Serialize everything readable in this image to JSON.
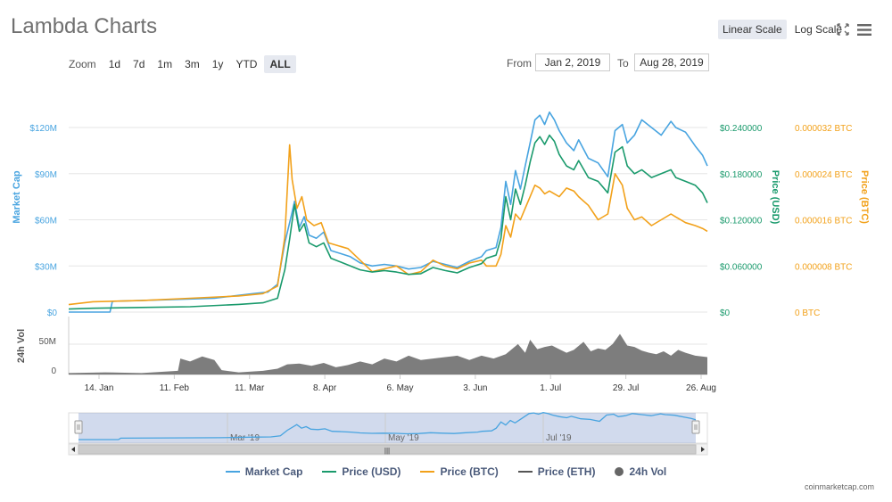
{
  "title": "Lambda Charts",
  "scale": {
    "linear_label": "Linear Scale",
    "log_label": "Log Scale",
    "selected": "linear"
  },
  "zoom": {
    "label": "Zoom",
    "options": [
      "1d",
      "7d",
      "1m",
      "3m",
      "1y",
      "YTD",
      "ALL"
    ],
    "selected": "ALL"
  },
  "range": {
    "from_label": "From",
    "from_value": "Jan 2, 2019",
    "to_label": "To",
    "to_value": "Aug 28, 2019"
  },
  "credit": "coinmarketcap.com",
  "colors": {
    "market_cap": "#48a4e0",
    "price_usd": "#1a9a6c",
    "price_btc": "#f2a11a",
    "price_eth": "#555555",
    "vol": "#666666"
  },
  "chart_data": {
    "type": "line",
    "x_ticks": [
      "14. Jan",
      "11. Feb",
      "11. Mar",
      "8. Apr",
      "6. May",
      "3. Jun",
      "1. Jul",
      "29. Jul",
      "26. Aug"
    ],
    "x_range": [
      "2019-01-02",
      "2019-08-28"
    ],
    "axes": {
      "market_cap": {
        "title": "Market Cap",
        "ticks": [
          "$0",
          "$30M",
          "$60M",
          "$90M",
          "$120M"
        ],
        "range": [
          0,
          120000000
        ]
      },
      "price_usd": {
        "title": "Price (USD)",
        "ticks": [
          "$0",
          "$0.060000",
          "$0.120000",
          "$0.180000",
          "$0.240000"
        ],
        "range": [
          0,
          0.24
        ]
      },
      "price_btc": {
        "title": "Price (BTC)",
        "ticks": [
          "0 BTC",
          "0.000008 BTC",
          "0.000016 BTC",
          "0.000024 BTC",
          "0.000032 BTC"
        ],
        "range": [
          0,
          3.2e-05
        ]
      },
      "vol": {
        "title": "24h Vol",
        "ticks": [
          "0",
          "50M"
        ],
        "range": [
          0,
          80000000
        ]
      }
    },
    "navigator_labels": [
      "Mar '19",
      "May '19",
      "Jul '19"
    ],
    "series": [
      {
        "name": "Market Cap",
        "key": "market_cap",
        "axis": "market_cap",
        "points": [
          [
            0,
            0
          ],
          [
            17,
            0
          ],
          [
            18,
            7000000
          ],
          [
            40,
            8000000
          ],
          [
            60,
            9000000
          ],
          [
            76,
            12000000
          ],
          [
            82,
            13000000
          ],
          [
            86,
            18000000
          ],
          [
            89,
            45000000
          ],
          [
            92,
            65000000
          ],
          [
            93,
            72000000
          ],
          [
            95,
            55000000
          ],
          [
            97,
            62000000
          ],
          [
            99,
            50000000
          ],
          [
            102,
            48000000
          ],
          [
            105,
            52000000
          ],
          [
            108,
            40000000
          ],
          [
            112,
            38000000
          ],
          [
            116,
            36000000
          ],
          [
            120,
            32000000
          ],
          [
            125,
            30000000
          ],
          [
            130,
            31000000
          ],
          [
            135,
            30000000
          ],
          [
            140,
            28000000
          ],
          [
            145,
            29000000
          ],
          [
            150,
            33000000
          ],
          [
            155,
            31000000
          ],
          [
            160,
            29000000
          ],
          [
            165,
            33000000
          ],
          [
            170,
            36000000
          ],
          [
            172,
            40000000
          ],
          [
            176,
            42000000
          ],
          [
            178,
            55000000
          ],
          [
            180,
            85000000
          ],
          [
            182,
            70000000
          ],
          [
            184,
            92000000
          ],
          [
            186,
            80000000
          ],
          [
            188,
            95000000
          ],
          [
            190,
            110000000
          ],
          [
            192,
            125000000
          ],
          [
            194,
            128000000
          ],
          [
            196,
            122000000
          ],
          [
            198,
            130000000
          ],
          [
            200,
            125000000
          ],
          [
            202,
            118000000
          ],
          [
            205,
            110000000
          ],
          [
            208,
            105000000
          ],
          [
            210,
            112000000
          ],
          [
            214,
            100000000
          ],
          [
            218,
            97000000
          ],
          [
            222,
            88000000
          ],
          [
            225,
            118000000
          ],
          [
            228,
            122000000
          ],
          [
            230,
            110000000
          ],
          [
            233,
            115000000
          ],
          [
            236,
            125000000
          ],
          [
            240,
            120000000
          ],
          [
            244,
            115000000
          ],
          [
            248,
            124000000
          ],
          [
            250,
            120000000
          ],
          [
            254,
            117000000
          ],
          [
            258,
            108000000
          ],
          [
            261,
            102000000
          ],
          [
            263,
            95000000
          ]
        ]
      },
      {
        "name": "Price (USD)",
        "key": "price_usd",
        "axis": "price_usd",
        "points": [
          [
            0,
            0.004
          ],
          [
            10,
            0.005
          ],
          [
            30,
            0.006
          ],
          [
            50,
            0.007
          ],
          [
            70,
            0.01
          ],
          [
            80,
            0.012
          ],
          [
            86,
            0.018
          ],
          [
            89,
            0.055
          ],
          [
            91,
            0.095
          ],
          [
            93,
            0.14
          ],
          [
            95,
            0.105
          ],
          [
            97,
            0.115
          ],
          [
            99,
            0.09
          ],
          [
            102,
            0.085
          ],
          [
            105,
            0.09
          ],
          [
            108,
            0.07
          ],
          [
            112,
            0.065
          ],
          [
            116,
            0.06
          ],
          [
            120,
            0.055
          ],
          [
            125,
            0.052
          ],
          [
            130,
            0.054
          ],
          [
            135,
            0.052
          ],
          [
            140,
            0.049
          ],
          [
            145,
            0.05
          ],
          [
            150,
            0.058
          ],
          [
            155,
            0.054
          ],
          [
            160,
            0.051
          ],
          [
            165,
            0.058
          ],
          [
            170,
            0.063
          ],
          [
            172,
            0.07
          ],
          [
            176,
            0.074
          ],
          [
            178,
            0.096
          ],
          [
            180,
            0.15
          ],
          [
            182,
            0.12
          ],
          [
            184,
            0.16
          ],
          [
            186,
            0.14
          ],
          [
            188,
            0.165
          ],
          [
            190,
            0.195
          ],
          [
            192,
            0.22
          ],
          [
            194,
            0.228
          ],
          [
            196,
            0.218
          ],
          [
            198,
            0.23
          ],
          [
            200,
            0.222
          ],
          [
            202,
            0.205
          ],
          [
            205,
            0.19
          ],
          [
            208,
            0.185
          ],
          [
            210,
            0.197
          ],
          [
            214,
            0.175
          ],
          [
            218,
            0.17
          ],
          [
            222,
            0.155
          ],
          [
            225,
            0.208
          ],
          [
            228,
            0.215
          ],
          [
            230,
            0.19
          ],
          [
            233,
            0.18
          ],
          [
            236,
            0.185
          ],
          [
            240,
            0.175
          ],
          [
            244,
            0.18
          ],
          [
            248,
            0.185
          ],
          [
            250,
            0.175
          ],
          [
            254,
            0.17
          ],
          [
            258,
            0.165
          ],
          [
            261,
            0.155
          ],
          [
            263,
            0.142
          ]
        ]
      },
      {
        "name": "Price (BTC)",
        "key": "price_btc",
        "axis": "price_btc",
        "points": [
          [
            0,
            1.3e-06
          ],
          [
            10,
            1.8e-06
          ],
          [
            30,
            2e-06
          ],
          [
            50,
            2.4e-06
          ],
          [
            70,
            2.8e-06
          ],
          [
            80,
            3.2e-06
          ],
          [
            86,
            4.5e-06
          ],
          [
            89,
            1.3e-05
          ],
          [
            91,
            2.9e-05
          ],
          [
            92,
            2.3e-05
          ],
          [
            94,
            1.8e-05
          ],
          [
            96,
            2e-05
          ],
          [
            98,
            1.6e-05
          ],
          [
            101,
            1.5e-05
          ],
          [
            104,
            1.55e-05
          ],
          [
            107,
            1.2e-05
          ],
          [
            111,
            1.15e-05
          ],
          [
            115,
            1.1e-05
          ],
          [
            120,
            9e-06
          ],
          [
            125,
            7e-06
          ],
          [
            130,
            7.5e-06
          ],
          [
            135,
            8e-06
          ],
          [
            140,
            6.5e-06
          ],
          [
            145,
            7e-06
          ],
          [
            150,
            9e-06
          ],
          [
            155,
            8e-06
          ],
          [
            160,
            7.5e-06
          ],
          [
            165,
            8.5e-06
          ],
          [
            170,
            9e-06
          ],
          [
            172,
            8e-06
          ],
          [
            176,
            8e-06
          ],
          [
            178,
            1e-05
          ],
          [
            180,
            1.5e-05
          ],
          [
            182,
            1.3e-05
          ],
          [
            184,
            1.7e-05
          ],
          [
            186,
            1.6e-05
          ],
          [
            188,
            1.8e-05
          ],
          [
            190,
            2e-05
          ],
          [
            192,
            2.2e-05
          ],
          [
            194,
            2.15e-05
          ],
          [
            196,
            2.05e-05
          ],
          [
            198,
            2.1e-05
          ],
          [
            202,
            2e-05
          ],
          [
            205,
            2.15e-05
          ],
          [
            208,
            2.1e-05
          ],
          [
            210,
            2e-05
          ],
          [
            214,
            1.85e-05
          ],
          [
            218,
            1.6e-05
          ],
          [
            222,
            1.7e-05
          ],
          [
            225,
            2.4e-05
          ],
          [
            228,
            2.2e-05
          ],
          [
            230,
            1.8e-05
          ],
          [
            233,
            1.6e-05
          ],
          [
            236,
            1.65e-05
          ],
          [
            240,
            1.5e-05
          ],
          [
            244,
            1.6e-05
          ],
          [
            248,
            1.7e-05
          ],
          [
            250,
            1.65e-05
          ],
          [
            254,
            1.55e-05
          ],
          [
            258,
            1.5e-05
          ],
          [
            261,
            1.45e-05
          ],
          [
            263,
            1.4e-05
          ]
        ]
      },
      {
        "name": "24h Vol",
        "key": "vol",
        "axis": "vol",
        "points": [
          [
            0,
            2000000
          ],
          [
            15,
            3000000
          ],
          [
            30,
            2000000
          ],
          [
            45,
            5000000
          ],
          [
            46,
            22000000
          ],
          [
            50,
            18000000
          ],
          [
            55,
            25000000
          ],
          [
            60,
            20000000
          ],
          [
            63,
            6000000
          ],
          [
            70,
            3000000
          ],
          [
            80,
            5000000
          ],
          [
            86,
            8000000
          ],
          [
            90,
            14000000
          ],
          [
            95,
            15000000
          ],
          [
            100,
            12000000
          ],
          [
            105,
            16000000
          ],
          [
            110,
            10000000
          ],
          [
            115,
            13000000
          ],
          [
            120,
            18000000
          ],
          [
            125,
            14000000
          ],
          [
            130,
            22000000
          ],
          [
            135,
            18000000
          ],
          [
            140,
            26000000
          ],
          [
            145,
            20000000
          ],
          [
            150,
            22000000
          ],
          [
            155,
            24000000
          ],
          [
            160,
            26000000
          ],
          [
            165,
            20000000
          ],
          [
            170,
            26000000
          ],
          [
            175,
            22000000
          ],
          [
            180,
            28000000
          ],
          [
            185,
            42000000
          ],
          [
            188,
            30000000
          ],
          [
            190,
            48000000
          ],
          [
            193,
            35000000
          ],
          [
            196,
            38000000
          ],
          [
            199,
            40000000
          ],
          [
            202,
            35000000
          ],
          [
            205,
            30000000
          ],
          [
            208,
            34000000
          ],
          [
            212,
            45000000
          ],
          [
            215,
            32000000
          ],
          [
            218,
            36000000
          ],
          [
            221,
            34000000
          ],
          [
            224,
            42000000
          ],
          [
            227,
            56000000
          ],
          [
            230,
            40000000
          ],
          [
            233,
            38000000
          ],
          [
            236,
            33000000
          ],
          [
            239,
            30000000
          ],
          [
            242,
            28000000
          ],
          [
            245,
            32000000
          ],
          [
            248,
            26000000
          ],
          [
            251,
            34000000
          ],
          [
            254,
            30000000
          ],
          [
            258,
            26000000
          ],
          [
            263,
            24000000
          ]
        ]
      }
    ],
    "legend": [
      {
        "name": "Market Cap",
        "key": "market_cap",
        "marker": "line"
      },
      {
        "name": "Price (USD)",
        "key": "price_usd",
        "marker": "line"
      },
      {
        "name": "Price (BTC)",
        "key": "price_btc",
        "marker": "line"
      },
      {
        "name": "Price (ETH)",
        "key": "price_eth",
        "marker": "line"
      },
      {
        "name": "24h Vol",
        "key": "vol",
        "marker": "dot"
      }
    ]
  }
}
